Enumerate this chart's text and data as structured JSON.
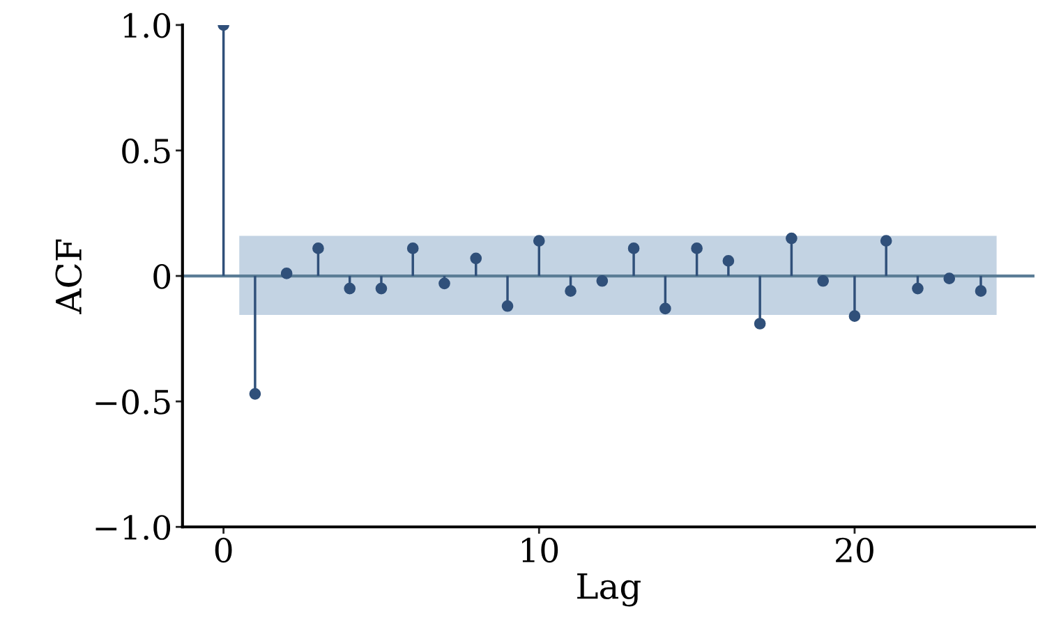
{
  "chart_data": {
    "type": "lollipop",
    "xlabel": "Lag",
    "ylabel": "ACF",
    "xlim": [
      -1.3,
      25.7
    ],
    "xticks": [
      0,
      10,
      20
    ],
    "ylim": [
      -1.0,
      1.0
    ],
    "yticks": [
      {
        "value": -1.0,
        "label": "−1.0"
      },
      {
        "value": -0.5,
        "label": "−0.5"
      },
      {
        "value": 0,
        "label": "0"
      },
      {
        "value": 0.5,
        "label": "0.5"
      },
      {
        "value": 1.0,
        "label": "1.0"
      }
    ],
    "grid": false,
    "marker": "circle",
    "ref_lines": [
      {
        "axis": "y",
        "value": 0,
        "color": "#5b7d96"
      }
    ],
    "bands": [
      {
        "axis": "y",
        "from": -0.155,
        "to": 0.16,
        "color": "#c3d3e3"
      }
    ],
    "series": [
      {
        "color": "#30507a",
        "x": [
          0,
          1,
          2,
          3,
          4,
          5,
          6,
          7,
          8,
          9,
          10,
          11,
          12,
          13,
          14,
          15,
          16,
          17,
          18,
          19,
          20,
          21,
          22,
          23,
          24
        ],
        "values": [
          1.0,
          -0.47,
          0.01,
          0.11,
          -0.05,
          -0.05,
          0.11,
          -0.03,
          0.07,
          -0.12,
          0.14,
          -0.06,
          -0.02,
          0.11,
          -0.13,
          0.11,
          0.06,
          -0.19,
          0.15,
          -0.02,
          -0.16,
          0.14,
          -0.05,
          -0.01,
          -0.06
        ]
      }
    ]
  }
}
